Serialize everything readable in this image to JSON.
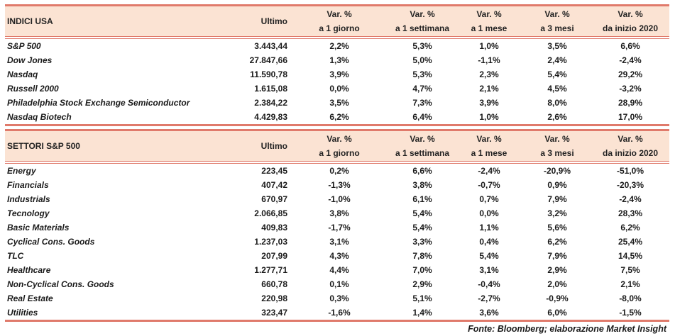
{
  "columns": [
    "Ultimo",
    "Var. %|a 1 giorno",
    "Var. %|a 1 settimana",
    "Var. %|a 1 mese",
    "Var. %|a 3 mesi",
    "Var. %|da inizio 2020"
  ],
  "col_headers": {
    "ultimo": "Ultimo",
    "var": "Var. %",
    "giorno": "a 1 giorno",
    "settimana": "a 1 settimana",
    "mese": "a 1 mese",
    "mesi3": "a 3 mesi",
    "ytd": "da inizio 2020"
  },
  "indici": {
    "title": "INDICI USA",
    "rows": [
      [
        "S&P 500",
        "3.443,44",
        "2,2%",
        "5,3%",
        "1,0%",
        "3,5%",
        "6,6%"
      ],
      [
        "Dow Jones",
        "27.847,66",
        "1,3%",
        "5,0%",
        "-1,1%",
        "2,4%",
        "-2,4%"
      ],
      [
        "Nasdaq",
        "11.590,78",
        "3,9%",
        "5,3%",
        "2,3%",
        "5,4%",
        "29,2%"
      ],
      [
        "Russell 2000",
        "1.615,08",
        "0,0%",
        "4,7%",
        "2,1%",
        "4,5%",
        "-3,2%"
      ],
      [
        "Philadelphia Stock Exchange Semiconductor",
        "2.384,22",
        "3,5%",
        "7,3%",
        "3,9%",
        "8,0%",
        "28,9%"
      ],
      [
        "Nasdaq Biotech",
        "4.429,83",
        "6,2%",
        "6,4%",
        "1,0%",
        "2,6%",
        "17,0%"
      ]
    ]
  },
  "settori": {
    "title": "SETTORI S&P 500",
    "rows": [
      [
        "Energy",
        "223,45",
        "0,2%",
        "6,6%",
        "-2,4%",
        "-20,9%",
        "-51,0%"
      ],
      [
        "Financials",
        "407,42",
        "-1,3%",
        "3,8%",
        "-0,7%",
        "0,9%",
        "-20,3%"
      ],
      [
        "Industrials",
        "670,97",
        "-1,0%",
        "6,1%",
        "0,7%",
        "7,9%",
        "-2,4%"
      ],
      [
        "Tecnology",
        "2.066,85",
        "3,8%",
        "5,4%",
        "0,0%",
        "3,2%",
        "28,3%"
      ],
      [
        "Basic Materials",
        "409,83",
        "-1,7%",
        "5,4%",
        "1,1%",
        "5,6%",
        "6,2%"
      ],
      [
        "Cyclical Cons. Goods",
        "1.237,03",
        "3,1%",
        "3,3%",
        "0,4%",
        "6,2%",
        "25,4%"
      ],
      [
        "TLC",
        "207,99",
        "4,3%",
        "7,8%",
        "5,4%",
        "7,9%",
        "14,5%"
      ],
      [
        "Healthcare",
        "1.277,71",
        "4,4%",
        "7,0%",
        "3,1%",
        "2,9%",
        "7,5%"
      ],
      [
        "Non-Cyclical Cons. Goods",
        "660,78",
        "0,1%",
        "2,9%",
        "-0,4%",
        "2,0%",
        "2,1%"
      ],
      [
        "Real Estate",
        "220,98",
        "0,3%",
        "5,1%",
        "-2,7%",
        "-0,9%",
        "-8,0%"
      ],
      [
        "Utilities",
        "323,47",
        "-1,6%",
        "1,4%",
        "3,6%",
        "6,0%",
        "-1,5%"
      ]
    ]
  },
  "footnote": "Fonte: Bloomberg; elaborazione Market Insight",
  "colors": {
    "header_bg": "#fbe3d3",
    "rule": "#e07a6b"
  }
}
